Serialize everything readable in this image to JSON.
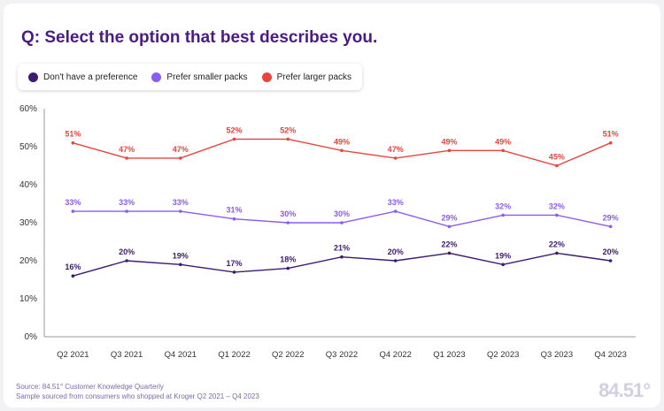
{
  "title": "Q: Select the option that best describes you.",
  "legend": [
    {
      "label": "Don't have a preference",
      "color": "#3d1a73"
    },
    {
      "label": "Prefer smaller packs",
      "color": "#8a5cf5"
    },
    {
      "label": "Prefer larger packs",
      "color": "#e8453c"
    }
  ],
  "chart_data": {
    "type": "line",
    "x": [
      "Q2 2021",
      "Q3 2021",
      "Q4 2021",
      "Q1 2022",
      "Q2 2022",
      "Q3 2022",
      "Q4 2022",
      "Q1 2023",
      "Q2 2023",
      "Q3 2023",
      "Q4 2023"
    ],
    "series": [
      {
        "name": "Don't have a preference",
        "color": "#3d1a73",
        "values": [
          16,
          20,
          19,
          17,
          18,
          21,
          20,
          22,
          19,
          22,
          20
        ]
      },
      {
        "name": "Prefer smaller packs",
        "color": "#8a5cf5",
        "values": [
          33,
          33,
          33,
          31,
          30,
          30,
          33,
          29,
          32,
          32,
          29
        ]
      },
      {
        "name": "Prefer larger packs",
        "color": "#e8453c",
        "values": [
          51,
          47,
          47,
          52,
          52,
          49,
          47,
          49,
          49,
          45,
          51
        ]
      }
    ],
    "ylim": [
      0,
      60
    ],
    "yticks": [
      0,
      10,
      20,
      30,
      40,
      50,
      60
    ],
    "value_suffix": "%",
    "grid": false,
    "legend_position": "top-left"
  },
  "footnote": {
    "line1": "Source: 84.51° Customer Knowledge Quarterly",
    "line2": "Sample sourced from consumers who shopped at Kroger Q2 2021 – Q4 2023"
  },
  "logo": "84.51°"
}
